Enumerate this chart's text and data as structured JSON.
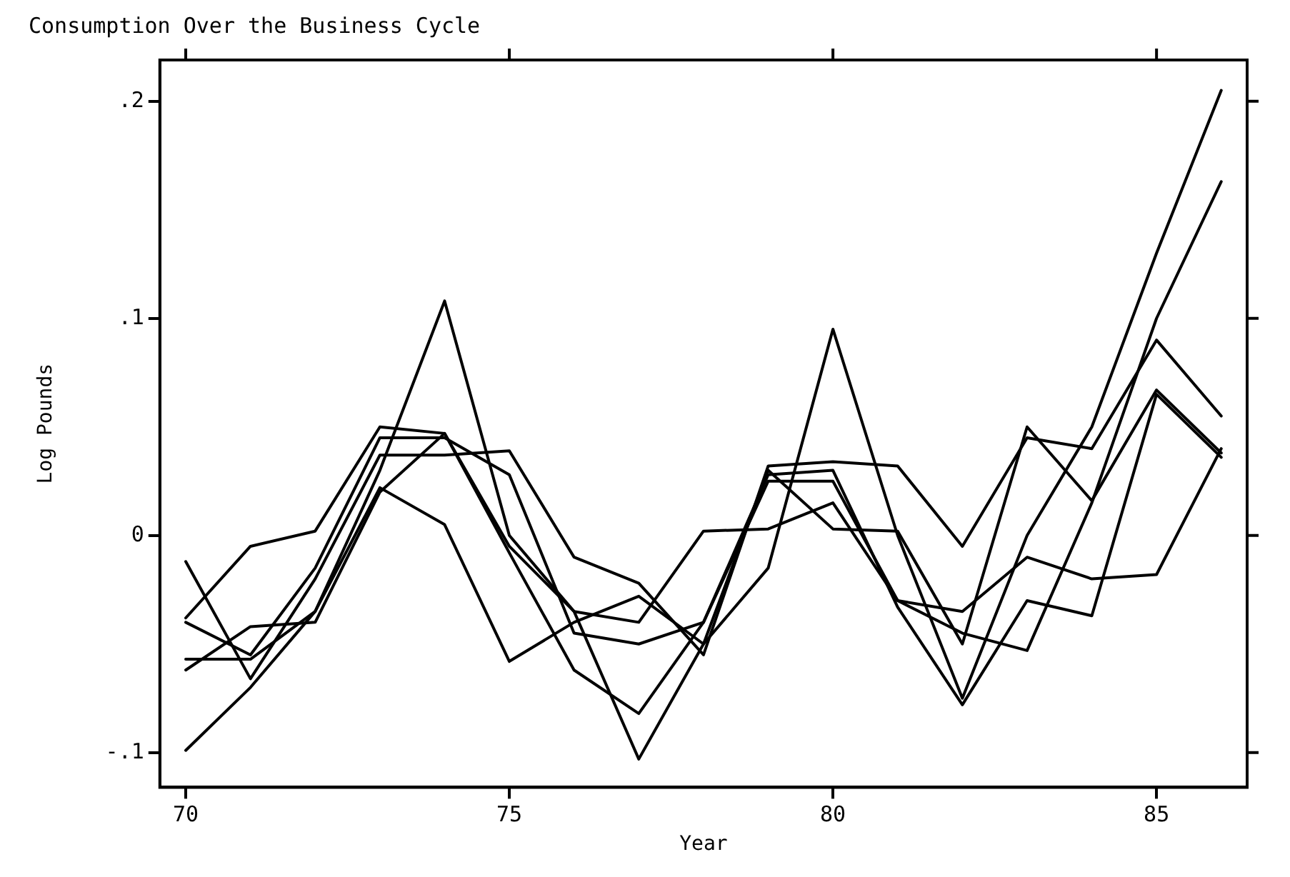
{
  "chart_data": {
    "type": "line",
    "title": "Consumption Over the Business Cycle",
    "xlabel": "Year",
    "ylabel": "Log Pounds",
    "x": [
      70,
      71,
      72,
      73,
      74,
      75,
      76,
      77,
      78,
      79,
      80,
      81,
      82,
      83,
      84,
      85,
      86
    ],
    "xlim": [
      69.6,
      86.4
    ],
    "xticks": [
      70,
      75,
      80,
      85
    ],
    "ylim": [
      -0.116,
      0.219
    ],
    "yticks": [
      {
        "value": 0.2,
        "label": ".2"
      },
      {
        "value": 0.1,
        "label": ".1"
      },
      {
        "value": 0,
        "label": "0"
      },
      {
        "value": -0.1,
        "label": "-.1"
      }
    ],
    "grid": false,
    "legend": false,
    "marker": "none",
    "line_style": "solid",
    "series": [
      {
        "color": "#000000",
        "values": [
          -0.099,
          -0.07,
          -0.035,
          0.03,
          0.108,
          0.0,
          -0.035,
          -0.103,
          -0.05,
          -0.015,
          0.095,
          0.0,
          -0.075,
          0.0,
          0.05,
          0.13,
          0.205
        ]
      },
      {
        "color": "#000000",
        "values": [
          -0.038,
          -0.005,
          0.002,
          0.05,
          0.047,
          -0.005,
          -0.035,
          -0.04,
          0.002,
          0.003,
          0.015,
          -0.03,
          -0.035,
          -0.01,
          -0.02,
          -0.018,
          0.04
        ]
      },
      {
        "color": "#000000",
        "values": [
          -0.012,
          -0.066,
          -0.02,
          0.037,
          0.037,
          0.039,
          -0.01,
          -0.022,
          -0.055,
          0.032,
          0.034,
          0.032,
          -0.005,
          0.045,
          0.04,
          0.09,
          0.055
        ]
      },
      {
        "color": "#000000",
        "values": [
          -0.057,
          -0.057,
          -0.035,
          0.022,
          0.005,
          -0.058,
          -0.04,
          -0.028,
          -0.05,
          0.03,
          0.003,
          0.002,
          -0.05,
          0.05,
          0.016,
          0.067,
          0.038
        ]
      },
      {
        "color": "#000000",
        "values": [
          -0.04,
          -0.055,
          -0.015,
          0.045,
          0.045,
          0.028,
          -0.045,
          -0.05,
          -0.04,
          0.025,
          0.025,
          -0.03,
          -0.045,
          -0.053,
          0.015,
          0.1,
          0.163
        ]
      },
      {
        "color": "#000000",
        "values": [
          -0.062,
          -0.042,
          -0.04,
          0.02,
          0.047,
          -0.008,
          -0.062,
          -0.082,
          -0.04,
          0.028,
          0.03,
          -0.033,
          -0.078,
          -0.03,
          -0.037,
          0.065,
          0.036
        ]
      }
    ]
  }
}
